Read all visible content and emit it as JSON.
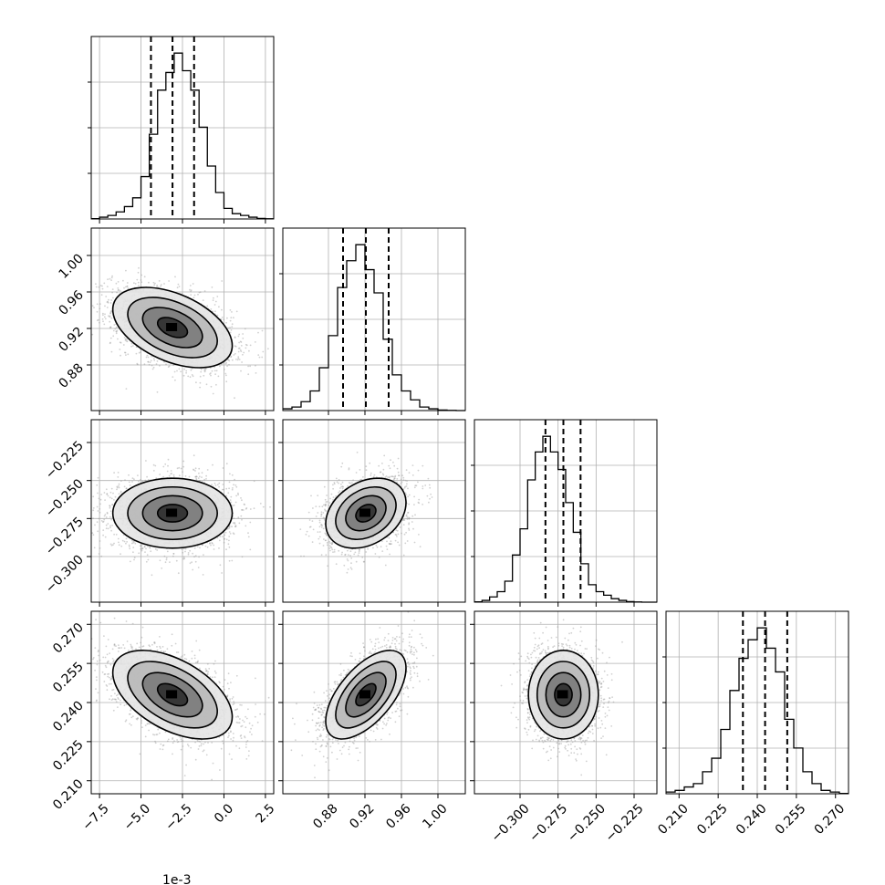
{
  "chart_data": {
    "type": "corner",
    "dimensions": [
      {
        "range": [
          -8.0,
          3.0
        ],
        "tick_values": [
          -7.5,
          -5.0,
          -2.5,
          0.0,
          2.5
        ],
        "tick_labels": [
          "−7.5",
          "−5.0",
          "−2.5",
          "0.0",
          "2.5"
        ],
        "offset_label": "1e-3",
        "quantiles": [
          -4.4,
          -3.1,
          -1.8
        ],
        "histogram": {
          "bin_edges": [
            -8.0,
            -7.5,
            -7.0,
            -6.5,
            -6.0,
            -5.5,
            -5.0,
            -4.5,
            -4.0,
            -3.5,
            -3.0,
            -2.5,
            -2.0,
            -1.5,
            -1.0,
            -0.5,
            0.0,
            0.5,
            1.0,
            1.5,
            2.0,
            2.5,
            3.0
          ],
          "counts": [
            0.2,
            1,
            2,
            4,
            7,
            12,
            24,
            48,
            73,
            83,
            94,
            84,
            73,
            52,
            30,
            15,
            6,
            3,
            2,
            1,
            0.3,
            0.1
          ]
        }
      },
      {
        "range": [
          0.83,
          1.03
        ],
        "tick_values": [
          0.88,
          0.92,
          0.96,
          1.0
        ],
        "tick_labels": [
          "0.88",
          "0.92",
          "0.96",
          "1.00"
        ],
        "quantiles": [
          0.896,
          0.921,
          0.946
        ],
        "histogram": {
          "bin_edges": [
            0.83,
            0.84,
            0.85,
            0.86,
            0.87,
            0.88,
            0.89,
            0.9,
            0.91,
            0.92,
            0.93,
            0.94,
            0.95,
            0.96,
            0.97,
            0.98,
            0.99,
            1.0,
            1.01,
            1.02,
            1.03
          ],
          "counts": [
            1,
            2,
            5,
            11,
            24,
            42,
            69,
            84,
            93,
            79,
            66,
            40,
            20,
            11,
            6,
            2,
            1,
            0.3,
            0.1,
            0
          ]
        }
      },
      {
        "range": [
          -0.33,
          -0.21
        ],
        "tick_values": [
          -0.3,
          -0.275,
          -0.25,
          -0.225
        ],
        "tick_labels": [
          "−0.300",
          "−0.275",
          "−0.250",
          "−0.225"
        ],
        "quantiles": [
          -0.2833,
          -0.2715,
          -0.2602
        ],
        "histogram": {
          "bin_edges": [
            -0.33,
            -0.325,
            -0.32,
            -0.315,
            -0.31,
            -0.305,
            -0.3,
            -0.295,
            -0.29,
            -0.285,
            -0.28,
            -0.275,
            -0.27,
            -0.265,
            -0.26,
            -0.255,
            -0.25,
            -0.245,
            -0.24,
            -0.235,
            -0.23,
            -0.225,
            -0.22,
            -0.215,
            -0.21
          ],
          "counts": [
            0.2,
            1,
            3,
            6,
            12,
            27,
            42,
            70,
            86,
            95,
            86,
            76,
            57,
            40,
            22,
            10,
            6,
            4,
            2,
            1,
            0.3,
            0.1,
            0,
            0
          ]
        }
      },
      {
        "range": [
          0.205,
          0.275
        ],
        "tick_values": [
          0.21,
          0.225,
          0.24,
          0.255,
          0.27
        ],
        "tick_labels": [
          "0.210",
          "0.225",
          "0.240",
          "0.255",
          "0.270"
        ],
        "quantiles": [
          0.2345,
          0.243,
          0.2515
        ],
        "histogram": {
          "bin_edges": [
            0.205,
            0.2085,
            0.212,
            0.2155,
            0.219,
            0.2225,
            0.226,
            0.2295,
            0.233,
            0.2365,
            0.24,
            0.2435,
            0.247,
            0.2505,
            0.254,
            0.2575,
            0.261,
            0.2645,
            0.268,
            0.2715,
            0.275
          ],
          "counts": [
            1,
            2,
            4,
            6,
            13,
            21,
            38,
            61,
            80,
            91,
            98,
            86,
            72,
            44,
            27,
            13,
            6,
            2,
            1,
            0.2
          ]
        }
      }
    ],
    "pairs": [
      {
        "x_dim": 0,
        "y_dim": 1,
        "center": [
          -3.1,
          0.921
        ],
        "spread": [
          1.8,
          0.022
        ],
        "rho": -0.45
      },
      {
        "x_dim": 0,
        "y_dim": 2,
        "center": [
          -3.1,
          -0.2715
        ],
        "spread": [
          1.8,
          0.0115
        ],
        "rho": 0.0
      },
      {
        "x_dim": 1,
        "y_dim": 2,
        "center": [
          0.921,
          -0.2715
        ],
        "spread": [
          0.022,
          0.0115
        ],
        "rho": 0.3
      },
      {
        "x_dim": 0,
        "y_dim": 3,
        "center": [
          -3.1,
          0.243
        ],
        "spread": [
          1.8,
          0.0085
        ],
        "rho": -0.5
      },
      {
        "x_dim": 1,
        "y_dim": 3,
        "center": [
          0.921,
          0.243
        ],
        "spread": [
          0.022,
          0.0085
        ],
        "rho": 0.6
      },
      {
        "x_dim": 2,
        "y_dim": 3,
        "center": [
          -0.2715,
          0.243
        ],
        "spread": [
          0.0115,
          0.0085
        ],
        "rho": 0.0
      }
    ],
    "contour_levels_sigma": [
      0.5,
      1.0,
      1.5,
      2.0
    ],
    "grid": true,
    "colors": {
      "frame": "#000000",
      "grid": "#b0b0b0",
      "points": "#999999",
      "density": "#000000"
    }
  }
}
